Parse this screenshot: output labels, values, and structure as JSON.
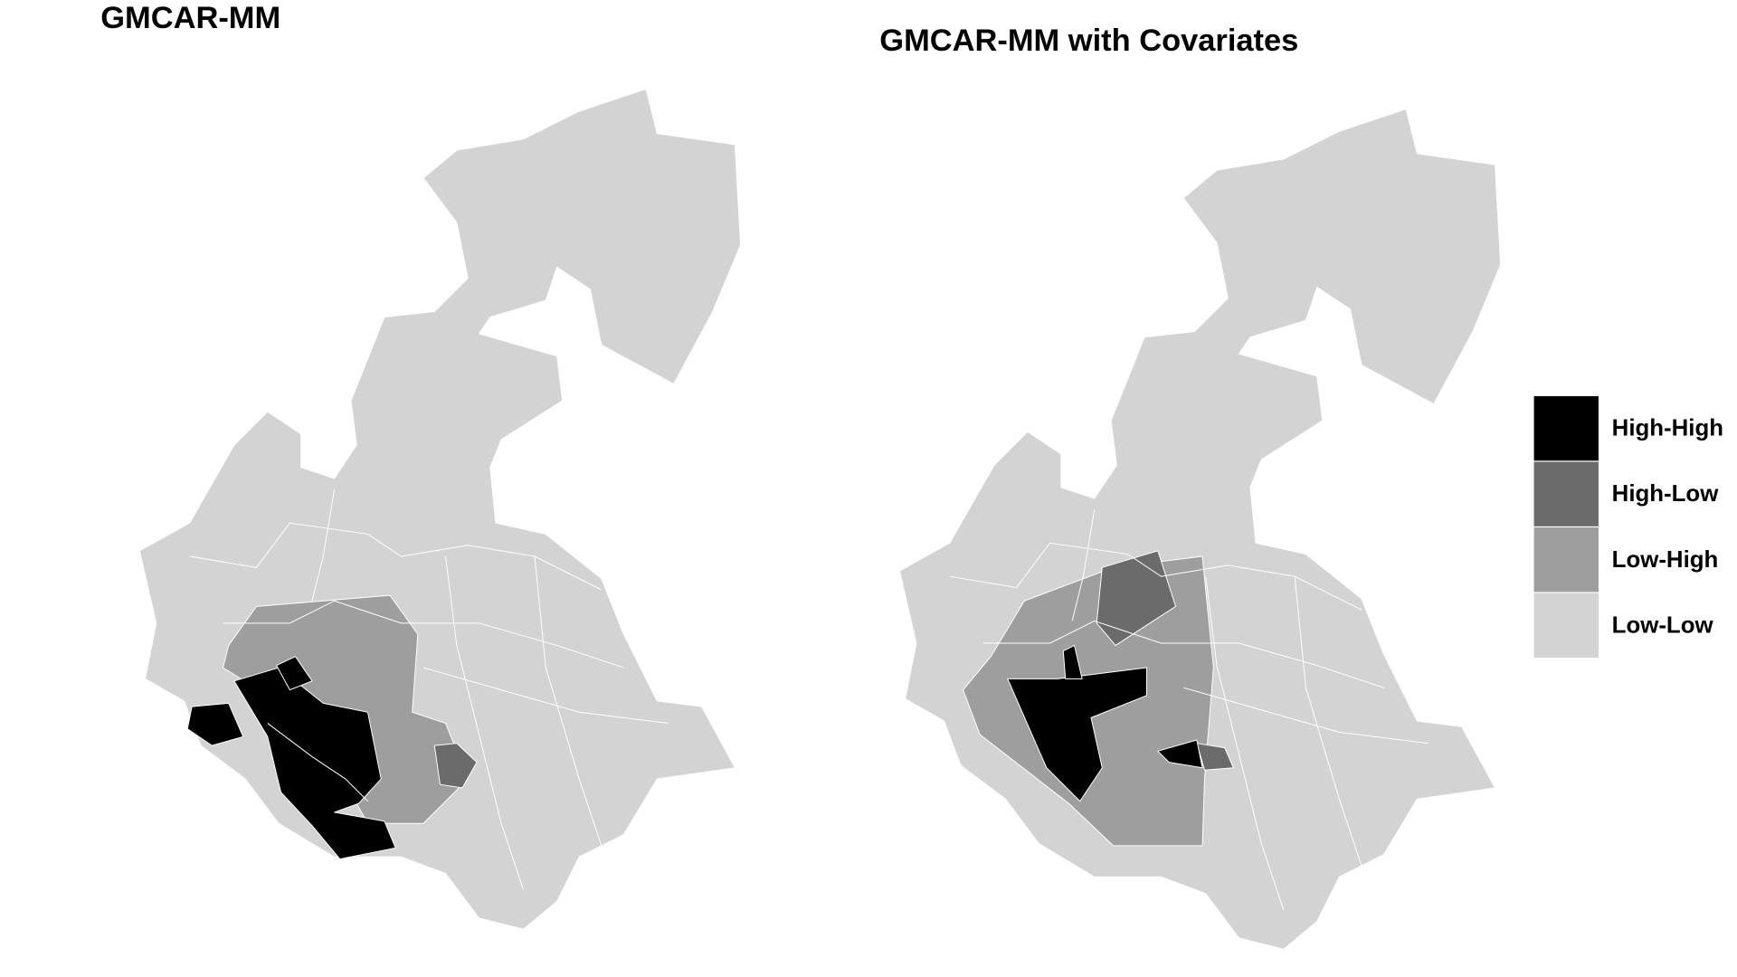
{
  "maps": [
    {
      "title": "GMCAR-MM"
    },
    {
      "title": "GMCAR-MM with Covariates"
    }
  ],
  "legend": {
    "entries": [
      {
        "label": "High-High",
        "color": "#000000"
      },
      {
        "label": "High-Low",
        "color": "#6b6b6b"
      },
      {
        "label": "Low-High",
        "color": "#9e9e9e"
      },
      {
        "label": "Low-Low",
        "color": "#d3d3d3"
      }
    ]
  }
}
